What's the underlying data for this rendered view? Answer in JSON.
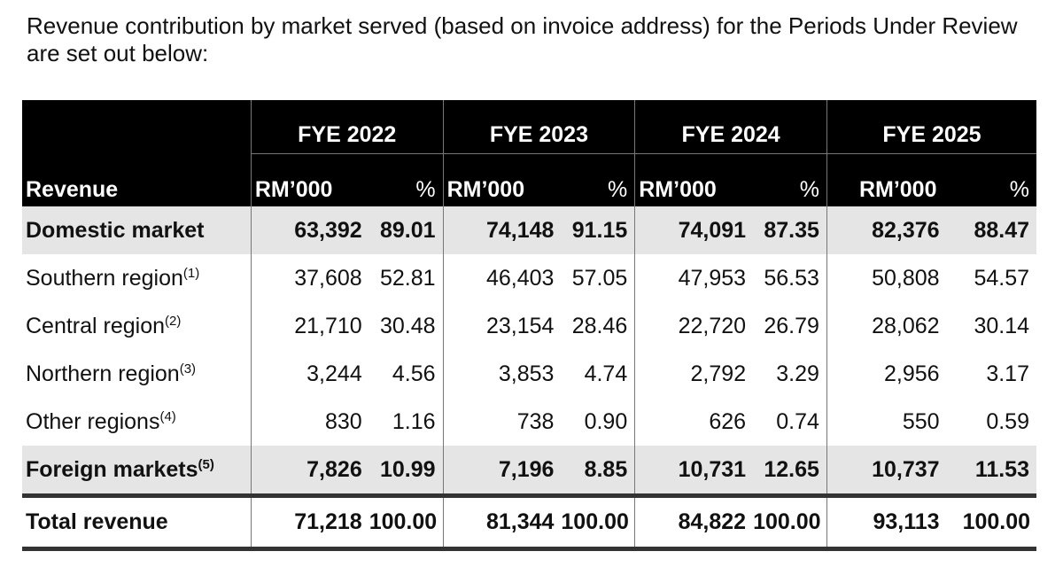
{
  "intro_text": "Revenue contribution by market served (based on invoice address) for the Periods Under Review are set out below:",
  "table": {
    "row_header_label": "Revenue",
    "years": [
      "FYE 2022",
      "FYE 2023",
      "FYE 2024",
      "FYE 2025"
    ],
    "unit_rm": "RM’000",
    "unit_pct": "%",
    "rows": [
      {
        "label": "Domestic market",
        "note": "",
        "highlight": true,
        "values": [
          [
            "63,392",
            "89.01"
          ],
          [
            "74,148",
            "91.15"
          ],
          [
            "74,091",
            "87.35"
          ],
          [
            "82,376",
            "88.47"
          ]
        ]
      },
      {
        "label": "Southern region",
        "note": "(1)",
        "highlight": false,
        "values": [
          [
            "37,608",
            "52.81"
          ],
          [
            "46,403",
            "57.05"
          ],
          [
            "47,953",
            "56.53"
          ],
          [
            "50,808",
            "54.57"
          ]
        ]
      },
      {
        "label": "Central region",
        "note": "(2)",
        "highlight": false,
        "values": [
          [
            "21,710",
            "30.48"
          ],
          [
            "23,154",
            "28.46"
          ],
          [
            "22,720",
            "26.79"
          ],
          [
            "28,062",
            "30.14"
          ]
        ]
      },
      {
        "label": "Northern region",
        "note": "(3)",
        "highlight": false,
        "values": [
          [
            "3,244",
            "4.56"
          ],
          [
            "3,853",
            "4.74"
          ],
          [
            "2,792",
            "3.29"
          ],
          [
            "2,956",
            "3.17"
          ]
        ]
      },
      {
        "label": "Other regions",
        "note": "(4)",
        "highlight": false,
        "values": [
          [
            "830",
            "1.16"
          ],
          [
            "738",
            "0.90"
          ],
          [
            "626",
            "0.74"
          ],
          [
            "550",
            "0.59"
          ]
        ]
      },
      {
        "label": "Foreign markets",
        "note": "(5)",
        "highlight": true,
        "values": [
          [
            "7,826",
            "10.99"
          ],
          [
            "7,196",
            "8.85"
          ],
          [
            "10,731",
            "12.65"
          ],
          [
            "10,737",
            "11.53"
          ]
        ]
      }
    ],
    "total": {
      "label": "Total revenue",
      "values": [
        [
          "71,218",
          "100.00"
        ],
        [
          "81,344",
          "100.00"
        ],
        [
          "84,822",
          "100.00"
        ],
        [
          "93,113",
          "100.00"
        ]
      ]
    }
  }
}
